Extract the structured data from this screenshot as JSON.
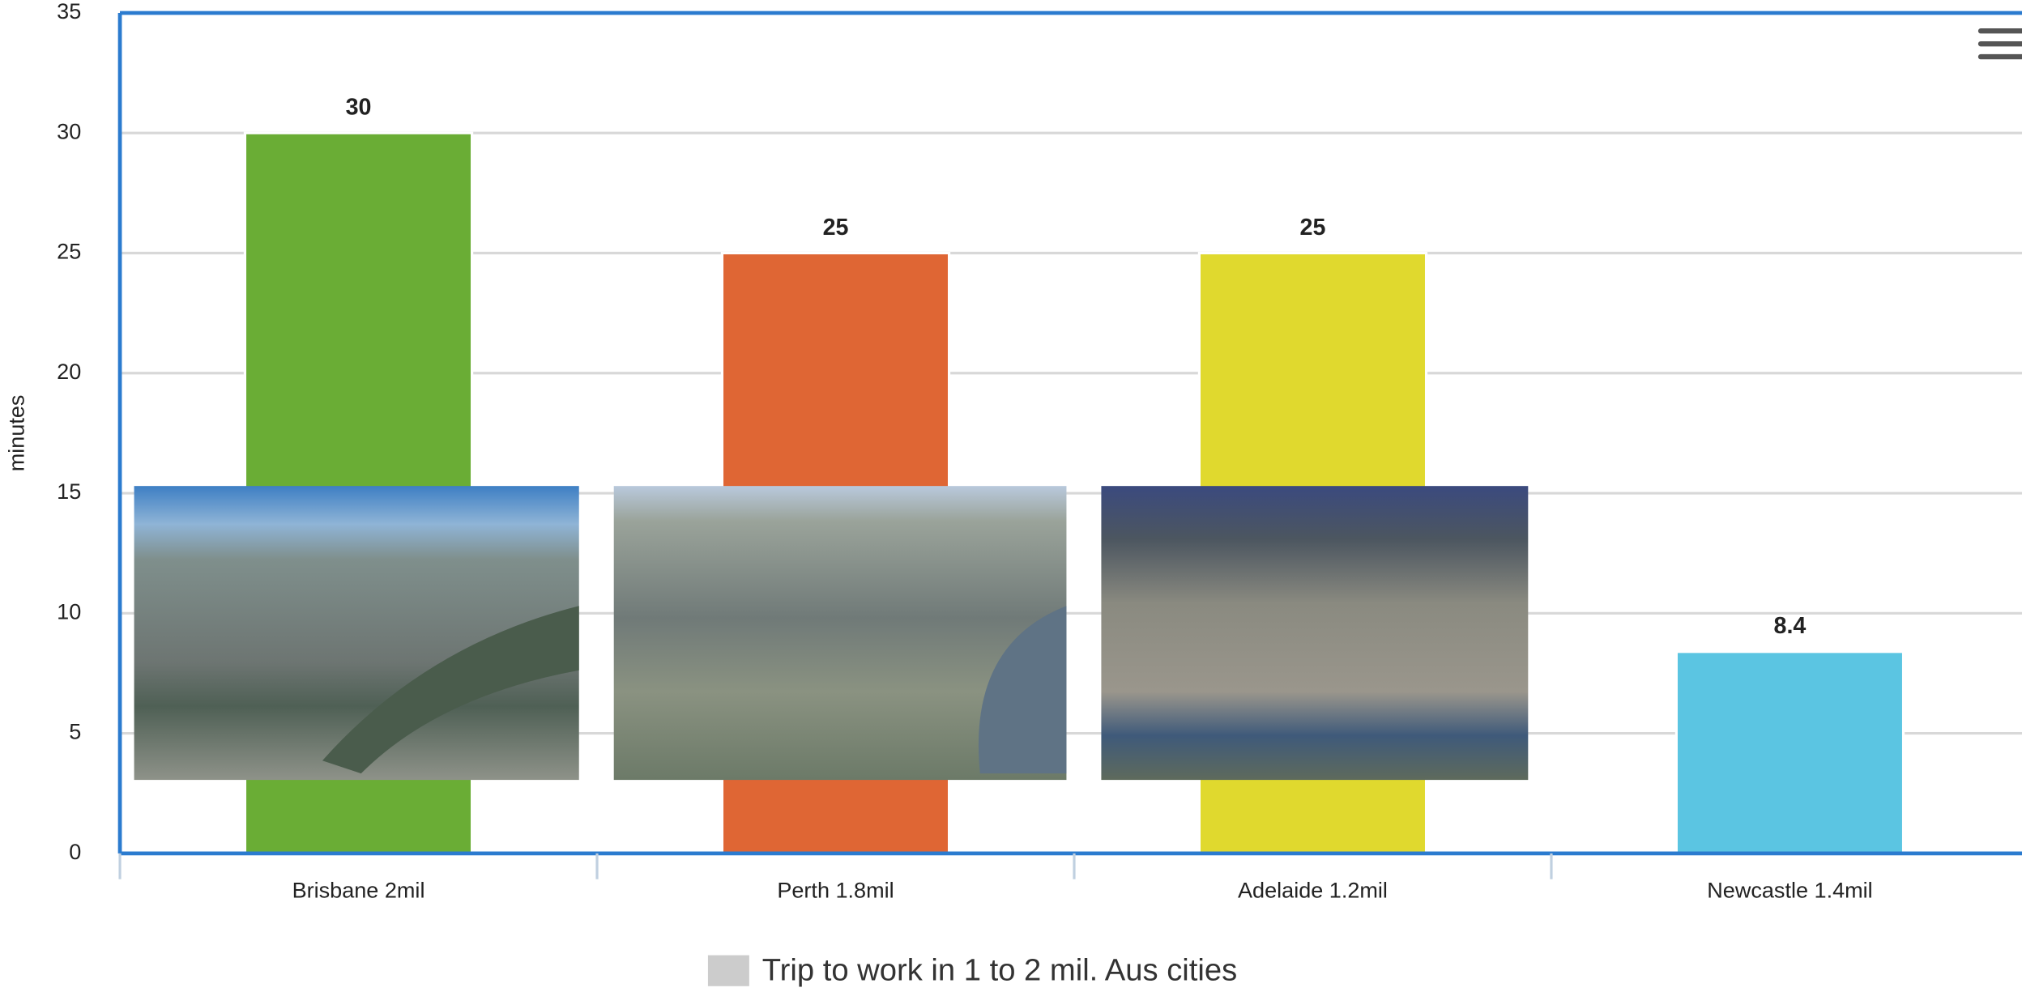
{
  "chart_data": {
    "type": "bar",
    "y_axis_label": "minutes",
    "categories": [
      "Brisbane 2mil",
      "Perth 1.8mil",
      "Adelaide 1.2mil",
      "Newcastle 1.4mil"
    ],
    "series": [
      {
        "name": "Trip to work in 1 to 2 mil. Aus cities",
        "colors": [
          "#6aad35",
          "#df6634",
          "#e0d92e",
          "#5bc5e2"
        ],
        "values": [
          30,
          25,
          25,
          8.4
        ]
      }
    ],
    "legend_color": "#cccccc",
    "ylim": [
      0,
      35
    ],
    "yticks": [
      0,
      5,
      10,
      15,
      20,
      25,
      30,
      35
    ],
    "grid": true,
    "legend": "bottom"
  }
}
